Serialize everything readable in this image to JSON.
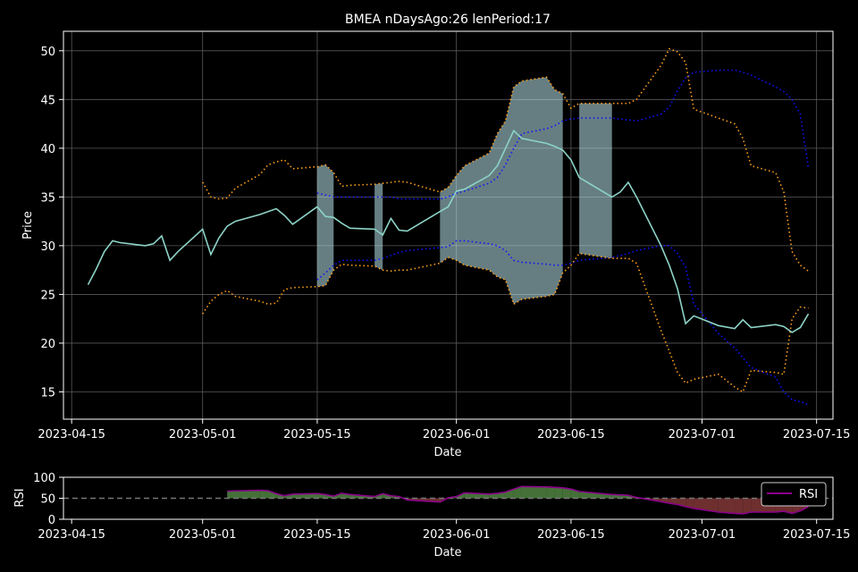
{
  "chart_data": [
    {
      "type": "line",
      "title": "BMEA nDaysAgo:26 lenPeriod:17",
      "xlabel": "Date",
      "ylabel": "Price",
      "xlim": [
        "2023-04-14",
        "2023-07-17"
      ],
      "ylim": [
        12.2,
        52.0
      ],
      "xticks": [
        "2023-04-15",
        "2023-05-01",
        "2023-05-15",
        "2023-06-01",
        "2023-06-15",
        "2023-07-01",
        "2023-07-15"
      ],
      "yticks": [
        15,
        20,
        25,
        30,
        35,
        40,
        45,
        50
      ],
      "grid": true,
      "colors": {
        "price": "#8dd3c7",
        "band": "#ff9f1c",
        "mean": "#1010ff",
        "fill": "#b9e6ec",
        "grid": "#5a5a5a"
      },
      "price": {
        "x": [
          "2023-04-17",
          "2023-04-18",
          "2023-04-19",
          "2023-04-20",
          "2023-04-21",
          "2023-04-24",
          "2023-04-25",
          "2023-04-26",
          "2023-04-27",
          "2023-04-28",
          "2023-05-01",
          "2023-05-02",
          "2023-05-03",
          "2023-05-04",
          "2023-05-05",
          "2023-05-08",
          "2023-05-09",
          "2023-05-10",
          "2023-05-11",
          "2023-05-12",
          "2023-05-15",
          "2023-05-16",
          "2023-05-17",
          "2023-05-18",
          "2023-05-19",
          "2023-05-22",
          "2023-05-23",
          "2023-05-24",
          "2023-05-25",
          "2023-05-26",
          "2023-05-30",
          "2023-05-31",
          "2023-06-01",
          "2023-06-02",
          "2023-06-05",
          "2023-06-06",
          "2023-06-07",
          "2023-06-08",
          "2023-06-09",
          "2023-06-12",
          "2023-06-13",
          "2023-06-14",
          "2023-06-15",
          "2023-06-16",
          "2023-06-20",
          "2023-06-21",
          "2023-06-22",
          "2023-06-23",
          "2023-06-26",
          "2023-06-27",
          "2023-06-28",
          "2023-06-29",
          "2023-06-30",
          "2023-07-03",
          "2023-07-05",
          "2023-07-06",
          "2023-07-07",
          "2023-07-10",
          "2023-07-11",
          "2023-07-12",
          "2023-07-13",
          "2023-07-14"
        ],
        "values": [
          26.0,
          27.6,
          29.4,
          30.5,
          30.3,
          30.0,
          30.2,
          31.0,
          28.5,
          29.4,
          31.7,
          29.1,
          30.8,
          32.0,
          32.5,
          33.2,
          33.5,
          33.8,
          33.1,
          32.2,
          34.0,
          33.0,
          32.9,
          32.3,
          31.8,
          31.7,
          31.1,
          32.8,
          31.6,
          31.5,
          33.5,
          34.0,
          35.6,
          35.8,
          37.2,
          38.2,
          40.0,
          41.8,
          41.0,
          40.5,
          40.2,
          39.8,
          38.8,
          37.0,
          35.0,
          35.5,
          36.5,
          35.0,
          30.0,
          28.0,
          25.6,
          22.0,
          22.8,
          21.8,
          21.5,
          22.4,
          21.6,
          21.9,
          21.7,
          21.1,
          21.6,
          23.0
        ]
      },
      "upper_band": {
        "x": [
          "2023-05-01",
          "2023-05-02",
          "2023-05-03",
          "2023-05-04",
          "2023-05-05",
          "2023-05-08",
          "2023-05-09",
          "2023-05-10",
          "2023-05-11",
          "2023-05-12",
          "2023-05-15",
          "2023-05-16",
          "2023-05-17",
          "2023-05-18",
          "2023-05-19",
          "2023-05-22",
          "2023-05-23",
          "2023-05-24",
          "2023-05-25",
          "2023-05-26",
          "2023-05-30",
          "2023-05-31",
          "2023-06-01",
          "2023-06-02",
          "2023-06-05",
          "2023-06-06",
          "2023-06-07",
          "2023-06-08",
          "2023-06-09",
          "2023-06-12",
          "2023-06-13",
          "2023-06-14",
          "2023-06-15",
          "2023-06-16",
          "2023-06-20",
          "2023-06-21",
          "2023-06-22",
          "2023-06-23",
          "2023-06-26",
          "2023-06-27",
          "2023-06-28",
          "2023-06-29",
          "2023-06-30",
          "2023-07-03",
          "2023-07-05",
          "2023-07-06",
          "2023-07-07",
          "2023-07-10",
          "2023-07-11",
          "2023-07-12",
          "2023-07-13",
          "2023-07-14"
        ],
        "values": [
          36.5,
          35.0,
          34.8,
          34.9,
          35.9,
          37.3,
          38.3,
          38.6,
          38.8,
          37.9,
          38.1,
          38.3,
          37.5,
          36.1,
          36.2,
          36.3,
          36.4,
          36.5,
          36.6,
          36.5,
          35.5,
          36.0,
          37.2,
          38.2,
          39.5,
          41.5,
          42.8,
          46.3,
          46.9,
          47.3,
          46.0,
          45.6,
          44.1,
          44.6,
          44.6,
          44.6,
          44.6,
          45.0,
          48.5,
          50.2,
          49.9,
          48.8,
          44.0,
          43.1,
          42.5,
          41.0,
          38.2,
          37.5,
          35.5,
          29.4,
          28.0,
          27.4
        ]
      },
      "lower_band": {
        "x": [
          "2023-05-01",
          "2023-05-02",
          "2023-05-03",
          "2023-05-04",
          "2023-05-05",
          "2023-05-08",
          "2023-05-09",
          "2023-05-10",
          "2023-05-11",
          "2023-05-12",
          "2023-05-15",
          "2023-05-16",
          "2023-05-17",
          "2023-05-18",
          "2023-05-19",
          "2023-05-22",
          "2023-05-23",
          "2023-05-24",
          "2023-05-25",
          "2023-05-26",
          "2023-05-30",
          "2023-05-31",
          "2023-06-01",
          "2023-06-02",
          "2023-06-05",
          "2023-06-06",
          "2023-06-07",
          "2023-06-08",
          "2023-06-09",
          "2023-06-12",
          "2023-06-13",
          "2023-06-14",
          "2023-06-15",
          "2023-06-16",
          "2023-06-20",
          "2023-06-21",
          "2023-06-22",
          "2023-06-23",
          "2023-06-26",
          "2023-06-27",
          "2023-06-28",
          "2023-06-29",
          "2023-06-30",
          "2023-07-03",
          "2023-07-05",
          "2023-07-06",
          "2023-07-07",
          "2023-07-10",
          "2023-07-11",
          "2023-07-12",
          "2023-07-13",
          "2023-07-14"
        ],
        "values": [
          23.0,
          24.3,
          25.0,
          25.4,
          24.8,
          24.3,
          24.0,
          24.1,
          25.5,
          25.7,
          25.8,
          25.9,
          27.5,
          28.1,
          28.0,
          27.9,
          27.5,
          27.4,
          27.5,
          27.5,
          28.2,
          28.8,
          28.5,
          28.0,
          27.5,
          26.8,
          26.5,
          24.0,
          24.5,
          24.8,
          25.0,
          27.2,
          28.0,
          29.2,
          28.7,
          28.7,
          28.7,
          28.2,
          21.3,
          19.2,
          17.0,
          15.9,
          16.3,
          16.8,
          15.5,
          15.0,
          17.2,
          17.0,
          16.8,
          22.5,
          23.7,
          23.6
        ]
      },
      "mean": {
        "x": [
          "2023-05-15",
          "2023-05-16",
          "2023-05-17",
          "2023-05-18",
          "2023-05-19",
          "2023-05-22",
          "2023-05-23",
          "2023-05-24",
          "2023-05-25",
          "2023-05-26",
          "2023-05-30",
          "2023-05-31",
          "2023-06-01",
          "2023-06-02",
          "2023-06-05",
          "2023-06-06",
          "2023-06-07",
          "2023-06-08",
          "2023-06-09",
          "2023-06-12",
          "2023-06-13",
          "2023-06-14",
          "2023-06-15",
          "2023-06-16",
          "2023-06-20",
          "2023-06-21",
          "2023-06-22",
          "2023-06-23",
          "2023-06-26",
          "2023-06-27",
          "2023-06-28",
          "2023-06-29",
          "2023-06-30",
          "2023-07-03",
          "2023-07-05",
          "2023-07-06",
          "2023-07-07",
          "2023-07-10",
          "2023-07-11",
          "2023-07-12",
          "2023-07-13",
          "2023-07-14"
        ],
        "upper": [
          35.4,
          35.2,
          35.0,
          35.0,
          35.0,
          35.0,
          35.0,
          35.0,
          34.8,
          34.8,
          34.8,
          35.0,
          35.4,
          35.6,
          36.4,
          37.0,
          38.3,
          40.0,
          41.5,
          42.0,
          42.3,
          42.8,
          43.0,
          43.1,
          43.1,
          43.0,
          42.9,
          42.8,
          43.5,
          44.2,
          45.9,
          47.2,
          47.8,
          48.0,
          48.0,
          47.8,
          47.5,
          46.3,
          45.8,
          45.0,
          43.5,
          38.0
        ],
        "lower": [
          26.5,
          27.2,
          28.0,
          28.5,
          28.5,
          28.5,
          28.7,
          29.0,
          29.3,
          29.5,
          29.8,
          29.9,
          30.5,
          30.5,
          30.2,
          30.0,
          29.5,
          28.5,
          28.3,
          28.1,
          28.0,
          28.0,
          28.2,
          28.5,
          28.8,
          29.0,
          29.2,
          29.5,
          30.0,
          30.0,
          29.2,
          27.8,
          24.0,
          21.0,
          19.5,
          18.5,
          17.5,
          16.5,
          15.0,
          14.2,
          14.0,
          13.7
        ]
      },
      "shaded_x": [
        [
          "2023-05-15",
          "2023-05-17"
        ],
        [
          "2023-05-22",
          "2023-05-23"
        ],
        [
          "2023-05-30",
          "2023-06-14"
        ],
        [
          "2023-06-16",
          "2023-06-20"
        ]
      ]
    },
    {
      "type": "area",
      "xlabel": "Date",
      "ylabel": "RSI",
      "xlim": [
        "2023-04-14",
        "2023-07-17"
      ],
      "ylim": [
        0,
        100
      ],
      "yticks": [
        0,
        50,
        100
      ],
      "baseline": 50,
      "legend": [
        "RSI"
      ],
      "legend_position": "top-right",
      "colors": {
        "line": "#8b008b",
        "above": "#4c7d3f",
        "below": "#7b3434",
        "baseline": "#777777"
      },
      "x": [
        "2023-05-04",
        "2023-05-08",
        "2023-05-09",
        "2023-05-10",
        "2023-05-11",
        "2023-05-12",
        "2023-05-15",
        "2023-05-16",
        "2023-05-17",
        "2023-05-18",
        "2023-05-19",
        "2023-05-22",
        "2023-05-23",
        "2023-05-24",
        "2023-05-25",
        "2023-05-26",
        "2023-05-30",
        "2023-05-31",
        "2023-06-01",
        "2023-06-02",
        "2023-06-05",
        "2023-06-06",
        "2023-06-07",
        "2023-06-08",
        "2023-06-09",
        "2023-06-12",
        "2023-06-13",
        "2023-06-14",
        "2023-06-15",
        "2023-06-16",
        "2023-06-20",
        "2023-06-21",
        "2023-06-22",
        "2023-06-23",
        "2023-06-26",
        "2023-06-27",
        "2023-06-28",
        "2023-06-29",
        "2023-06-30",
        "2023-07-03",
        "2023-07-05",
        "2023-07-06",
        "2023-07-07",
        "2023-07-10",
        "2023-07-11",
        "2023-07-12",
        "2023-07-13",
        "2023-07-14"
      ],
      "values": [
        67,
        69,
        68,
        61,
        56,
        60,
        61,
        59,
        55,
        62,
        59,
        54,
        61,
        56,
        54,
        46,
        41,
        51,
        54,
        63,
        60,
        62,
        65,
        72,
        78,
        77,
        76,
        75,
        72,
        66,
        59,
        58,
        57,
        52,
        42,
        38,
        35,
        30,
        26,
        17,
        14,
        13,
        17,
        17,
        19,
        14,
        20,
        30
      ]
    }
  ]
}
